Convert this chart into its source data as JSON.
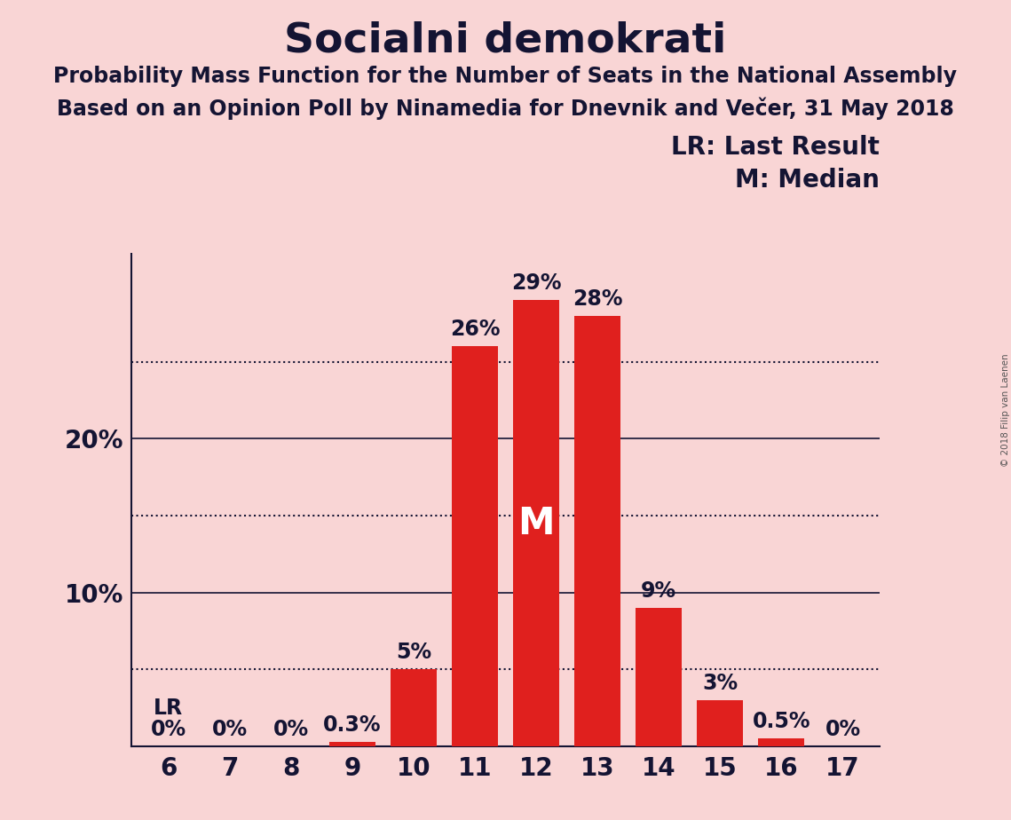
{
  "title": "Socialni demokrati",
  "subtitle1": "Probability Mass Function for the Number of Seats in the National Assembly",
  "subtitle2": "Based on an Opinion Poll by Ninamedia for Dnevnik and Večer, 31 May 2018",
  "copyright": "© 2018 Filip van Laenen",
  "categories": [
    6,
    7,
    8,
    9,
    10,
    11,
    12,
    13,
    14,
    15,
    16,
    17
  ],
  "values": [
    0.0,
    0.0,
    0.0,
    0.3,
    5.0,
    26.0,
    29.0,
    28.0,
    9.0,
    3.0,
    0.5,
    0.0
  ],
  "bar_labels": [
    "0%",
    "0%",
    "0%",
    "0.3%",
    "5%",
    "26%",
    "29%",
    "28%",
    "9%",
    "3%",
    "0.5%",
    "0%"
  ],
  "bar_color": "#e0201e",
  "background_color": "#f9d5d5",
  "text_color": "#141433",
  "bar_label_color_inside": "#ffffff",
  "bar_label_color_outside": "#141433",
  "median_bar_index": 6,
  "median_label": "M",
  "lr_bar_index": 0,
  "lr_label": "LR",
  "legend_text": [
    "LR: Last Result",
    "M: Median"
  ],
  "ylim": [
    0,
    32
  ],
  "solid_lines": [
    10,
    20
  ],
  "dotted_lines": [
    5,
    15,
    25
  ],
  "title_fontsize": 34,
  "subtitle_fontsize": 17,
  "axis_fontsize": 20,
  "bar_label_fontsize": 17,
  "legend_fontsize": 20,
  "median_fontsize": 30
}
